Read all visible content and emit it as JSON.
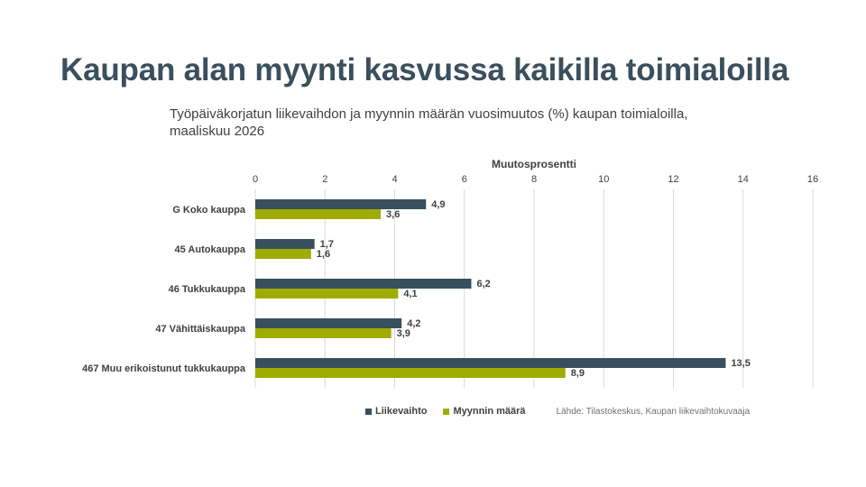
{
  "title": "Kaupan alan myynti kasvussa kaikilla toimialoilla",
  "subtitle": "Työpäiväkorjatun liikevaihdon ja myynnin määrän vuosimuutos (%) kaupan toimialoilla, maaliskuu 2026",
  "source": "Lähde: Tilastokeskus, Kaupan liikevaihtokuvaaja",
  "colors": {
    "liikevaihto": "#38505e",
    "myynti": "#a0ac00"
  },
  "chart_data": {
    "type": "bar",
    "orientation": "horizontal",
    "xlabel": "Muutosprosentti",
    "xlim": [
      0,
      16
    ],
    "ticks": [
      "0",
      "2",
      "4",
      "6",
      "8",
      "10",
      "12",
      "14",
      "16"
    ],
    "grid": true,
    "legend": "bottom",
    "categories": [
      "G Koko kauppa",
      "45 Autokauppa",
      "46 Tukkukauppa",
      "47 Vähittäiskauppa",
      "467 Muu erikoistunut tukkukauppa"
    ],
    "series": [
      {
        "name": "Liikevaihto",
        "values": [
          4.9,
          1.7,
          6.2,
          4.2,
          13.5
        ],
        "labels": [
          "4,9",
          "1,7",
          "6,2",
          "4,2",
          "13,5"
        ]
      },
      {
        "name": "Myynnin määrä",
        "values": [
          3.6,
          1.6,
          4.1,
          3.9,
          8.9
        ],
        "labels": [
          "3,6",
          "1,6",
          "4,1",
          "3,9",
          "8,9"
        ]
      }
    ]
  }
}
